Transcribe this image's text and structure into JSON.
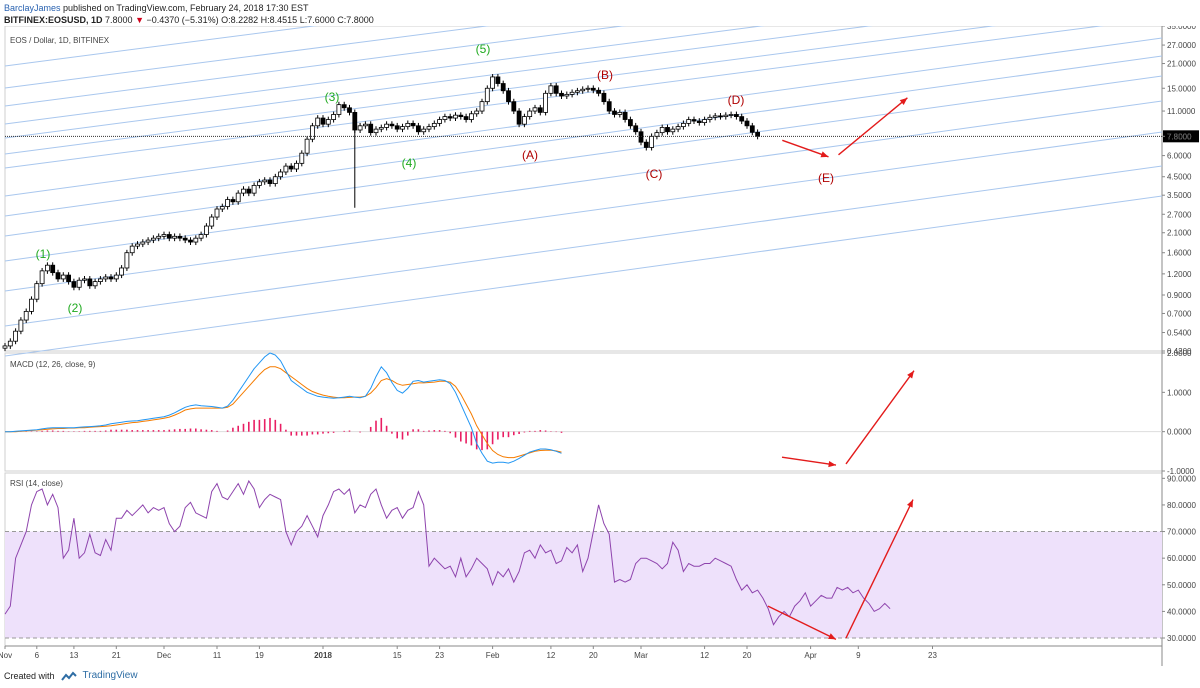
{
  "header": {
    "author": "BarclayJames",
    "published_text": "published on TradingView.com, February 24, 2018 17:30 EST",
    "symbol": "BITFINEX:EOSUSD, 1D",
    "last": "7.8000",
    "change": "−0.4370 (−5.31%)",
    "o_label": "O:",
    "o": "8.2282",
    "h_label": "H:",
    "h": "8.4515",
    "l_label": "L:",
    "l": "7.6000",
    "c_label": "C:",
    "c": "7.8000"
  },
  "footer": {
    "created_with": "Created with",
    "brand": "TradingView"
  },
  "colors": {
    "bull": "#ffffff",
    "bear": "#000000",
    "channel": "#a9c7ee",
    "macd": "#2196f3",
    "signal": "#f57c00",
    "hist": "#e91e63",
    "rsi": "#8e44ad",
    "rsi_band": "#eee1fb",
    "wave_green": "#1faa1f",
    "wave_red": "#b00000",
    "arrow": "#e31b1b"
  },
  "chart_data": [
    {
      "type": "candlestick",
      "title": "EOS / Dollar, 1D, BITFINEX",
      "scale": "log",
      "ylim": [
        0.42,
        35
      ],
      "y_ticks": [
        "35.0000",
        "27.0000",
        "21.0000",
        "15.0000",
        "11.0000",
        "7.8000",
        "6.0000",
        "4.5000",
        "3.5000",
        "2.7000",
        "2.1000",
        "1.6000",
        "1.2000",
        "0.9000",
        "0.7000",
        "0.5400",
        "0.4200"
      ],
      "y_tick_values": [
        35,
        27,
        21,
        15,
        11,
        7.8,
        6,
        4.5,
        3.5,
        2.7,
        2.1,
        1.6,
        1.2,
        0.9,
        0.7,
        0.54,
        0.42
      ],
      "last_price": "7.8000",
      "x_tick_labels": [
        "Nov",
        "6",
        "13",
        "21",
        "Dec",
        "11",
        "19",
        "2018",
        "15",
        "23",
        "Feb",
        "12",
        "20",
        "Mar",
        "12",
        "20",
        "Apr",
        "9",
        "23"
      ],
      "x_tick_days": [
        0,
        6,
        13,
        21,
        30,
        40,
        48,
        60,
        74,
        82,
        92,
        103,
        111,
        120,
        132,
        140,
        152,
        161,
        175
      ],
      "closes": [
        0.45,
        0.48,
        0.55,
        0.64,
        0.72,
        0.85,
        1.05,
        1.25,
        1.35,
        1.22,
        1.12,
        1.18,
        1.08,
        1.0,
        1.1,
        1.12,
        1.02,
        1.08,
        1.12,
        1.15,
        1.12,
        1.18,
        1.3,
        1.6,
        1.75,
        1.8,
        1.85,
        1.9,
        1.95,
        2.0,
        2.05,
        1.95,
        2.0,
        1.95,
        1.9,
        1.85,
        1.95,
        2.05,
        2.3,
        2.6,
        2.9,
        3.0,
        3.3,
        3.2,
        3.6,
        3.8,
        3.6,
        4.0,
        4.2,
        4.3,
        4.1,
        4.5,
        4.8,
        5.2,
        5.0,
        5.4,
        6.2,
        7.5,
        9.0,
        10.0,
        9.2,
        9.8,
        10.5,
        12.0,
        11.5,
        10.8,
        8.5,
        9.0,
        9.2,
        8.2,
        8.6,
        8.8,
        9.2,
        9.0,
        8.6,
        8.9,
        9.3,
        9.0,
        8.3,
        8.6,
        8.9,
        9.3,
        9.8,
        10.2,
        10.0,
        10.4,
        10.2,
        9.8,
        10.6,
        11.0,
        12.5,
        15.0,
        17.5,
        16.0,
        14.5,
        12.5,
        11.0,
        9.2,
        10.2,
        11.0,
        11.5,
        10.8,
        14.0,
        15.5,
        14.0,
        13.5,
        13.8,
        14.2,
        14.5,
        14.8,
        15.0,
        14.6,
        14.0,
        12.5,
        11.0,
        10.5,
        10.8,
        9.8,
        9.0,
        8.3,
        7.2,
        6.7,
        7.8,
        8.2,
        8.8,
        8.3,
        8.6,
        8.9,
        9.3,
        9.8,
        9.6,
        9.4,
        9.8,
        10.1,
        10.3,
        10.2,
        10.4,
        10.5,
        10.2,
        9.6,
        9.0,
        8.237,
        7.8
      ],
      "wave_labels": [
        {
          "text": "(1)",
          "color": "green"
        },
        {
          "text": "(2)",
          "color": "green"
        },
        {
          "text": "(3)",
          "color": "green"
        },
        {
          "text": "(4)",
          "color": "green"
        },
        {
          "text": "(5)",
          "color": "green"
        },
        {
          "text": "(A)",
          "color": "red"
        },
        {
          "text": "(B)",
          "color": "red"
        },
        {
          "text": "(C)",
          "color": "red"
        },
        {
          "text": "(D)",
          "color": "red"
        },
        {
          "text": "(E)",
          "color": "red"
        }
      ],
      "projection": [
        {
          "day": 141,
          "price": 7.8
        },
        {
          "day": 155,
          "price": 5.9
        },
        {
          "day": 168,
          "price": 15.5
        }
      ]
    },
    {
      "type": "line",
      "title": "MACD (12, 26, close, 9)",
      "ylim": [
        -1.0,
        2.0
      ],
      "y_ticks": [
        "2.0000",
        "1.0000",
        "0.0000",
        "-1.0000"
      ],
      "y_tick_values": [
        2,
        1,
        0,
        -1
      ],
      "series": [
        {
          "name": "MACD",
          "values": [
            0,
            0,
            0.01,
            0.02,
            0.03,
            0.04,
            0.05,
            0.07,
            0.09,
            0.1,
            0.1,
            0.1,
            0.1,
            0.1,
            0.11,
            0.12,
            0.13,
            0.14,
            0.15,
            0.17,
            0.2,
            0.22,
            0.24,
            0.26,
            0.27,
            0.28,
            0.3,
            0.32,
            0.34,
            0.36,
            0.38,
            0.42,
            0.48,
            0.55,
            0.62,
            0.66,
            0.68,
            0.66,
            0.65,
            0.64,
            0.62,
            0.6,
            0.65,
            0.8,
            1.0,
            1.2,
            1.4,
            1.6,
            1.75,
            1.9,
            2.0,
            1.95,
            1.8,
            1.55,
            1.3,
            1.2,
            1.1,
            1.0,
            0.95,
            0.9,
            0.88,
            0.86,
            0.85,
            0.86,
            0.88,
            0.9,
            0.88,
            0.86,
            0.9,
            1.1,
            1.4,
            1.65,
            1.5,
            1.25,
            1.05,
            0.98,
            1.1,
            1.28,
            1.3,
            1.26,
            1.28,
            1.3,
            1.32,
            1.3,
            1.22,
            1.0,
            0.7,
            0.4,
            0.1,
            -0.3,
            -0.55,
            -0.75,
            -0.8,
            -0.78,
            -0.78,
            -0.8,
            -0.75,
            -0.68,
            -0.6,
            -0.52,
            -0.48,
            -0.44,
            -0.44,
            -0.46,
            -0.5,
            -0.55
          ]
        },
        {
          "name": "Signal",
          "values": [
            0,
            0,
            0,
            0.01,
            0.02,
            0.03,
            0.04,
            0.05,
            0.06,
            0.07,
            0.08,
            0.08,
            0.09,
            0.09,
            0.1,
            0.1,
            0.11,
            0.12,
            0.13,
            0.14,
            0.15,
            0.17,
            0.19,
            0.21,
            0.23,
            0.24,
            0.26,
            0.28,
            0.3,
            0.32,
            0.34,
            0.37,
            0.42,
            0.48,
            0.55,
            0.58,
            0.6,
            0.6,
            0.6,
            0.6,
            0.6,
            0.6,
            0.62,
            0.7,
            0.85,
            1.0,
            1.15,
            1.3,
            1.45,
            1.58,
            1.65,
            1.65,
            1.6,
            1.5,
            1.4,
            1.3,
            1.2,
            1.1,
            1.02,
            0.97,
            0.93,
            0.9,
            0.88,
            0.86,
            0.86,
            0.87,
            0.88,
            0.88,
            0.9,
            0.98,
            1.12,
            1.3,
            1.35,
            1.3,
            1.22,
            1.18,
            1.2,
            1.22,
            1.24,
            1.24,
            1.25,
            1.26,
            1.28,
            1.28,
            1.26,
            1.15,
            0.95,
            0.7,
            0.45,
            0.15,
            -0.08,
            -0.3,
            -0.48,
            -0.58,
            -0.64,
            -0.66,
            -0.66,
            -0.62,
            -0.58,
            -0.54,
            -0.5,
            -0.48,
            -0.47,
            -0.47,
            -0.49,
            -0.52
          ]
        }
      ],
      "histogram": [
        0,
        0,
        0.01,
        0.01,
        0.01,
        0.01,
        0.01,
        0.02,
        0.03,
        0.03,
        0.02,
        0.02,
        0.01,
        0.01,
        0.01,
        0.02,
        0.02,
        0.02,
        0.02,
        0.03,
        0.05,
        0.05,
        0.05,
        0.05,
        0.04,
        0.04,
        0.04,
        0.04,
        0.04,
        0.04,
        0.04,
        0.05,
        0.06,
        0.07,
        0.07,
        0.08,
        0.08,
        0.06,
        0.05,
        0.04,
        0.02,
        0,
        0.03,
        0.1,
        0.15,
        0.2,
        0.25,
        0.3,
        0.3,
        0.32,
        0.35,
        0.3,
        0.2,
        0.05,
        -0.1,
        -0.1,
        -0.1,
        -0.1,
        -0.07,
        -0.07,
        -0.05,
        -0.04,
        -0.03,
        0,
        0.02,
        0.03,
        0,
        -0.02,
        0,
        0.12,
        0.28,
        0.35,
        0.15,
        -0.05,
        -0.17,
        -0.2,
        -0.1,
        0.06,
        0.06,
        0.02,
        0.03,
        0.04,
        0.04,
        0.02,
        -0.04,
        -0.15,
        -0.25,
        -0.3,
        -0.35,
        -0.45,
        -0.47,
        -0.45,
        -0.32,
        -0.2,
        -0.14,
        -0.14,
        -0.09,
        -0.06,
        -0.02,
        0.02,
        0.02,
        0.04,
        0.03,
        0.01,
        -0.01,
        -0.03
      ]
    },
    {
      "type": "line",
      "title": "RSI (14, close)",
      "ylim": [
        27,
        92
      ],
      "y_ticks": [
        "90.0000",
        "80.0000",
        "70.0000",
        "60.0000",
        "50.0000",
        "40.0000",
        "30.0000"
      ],
      "y_tick_values": [
        90,
        80,
        70,
        60,
        50,
        40,
        30
      ],
      "bands": [
        70,
        30
      ],
      "series": [
        {
          "name": "RSI",
          "values": [
            39,
            42,
            60,
            65,
            70,
            80,
            85,
            86,
            80,
            84,
            79,
            60,
            63,
            75,
            60,
            62,
            69,
            62,
            61,
            67,
            63,
            75,
            75,
            78,
            76,
            78,
            80,
            77,
            79,
            78,
            79,
            73,
            70,
            72,
            79,
            81,
            77,
            76,
            75,
            85,
            88,
            83,
            82,
            85,
            88,
            84,
            89,
            86,
            79,
            82,
            84,
            83,
            82,
            70,
            65,
            70,
            72,
            76,
            72,
            68,
            76,
            80,
            85,
            86,
            84,
            86,
            77,
            80,
            79,
            84,
            86,
            80,
            75,
            78,
            79,
            75,
            78,
            79,
            85,
            80,
            57,
            60,
            58,
            56,
            57,
            53,
            60,
            53,
            56,
            60,
            58,
            56,
            50,
            55,
            53,
            56,
            51,
            55,
            62,
            63,
            60,
            65,
            62,
            63,
            58,
            59,
            64,
            62,
            65,
            55,
            60,
            70,
            80,
            73,
            69,
            51,
            52,
            51,
            52,
            58,
            60,
            60,
            59,
            58,
            56,
            58,
            66,
            63,
            55,
            58,
            57,
            57,
            58,
            58,
            60,
            59,
            58,
            57,
            52,
            48,
            50,
            47,
            48,
            45,
            41,
            35,
            38,
            40,
            38,
            42,
            44,
            47,
            42,
            44,
            46,
            45,
            45,
            49,
            48,
            49,
            47,
            48,
            45,
            43,
            40,
            41,
            43,
            41
          ]
        }
      ]
    }
  ],
  "pane_titles": {
    "price": "EOS / Dollar, 1D, BITFINEX",
    "macd": "MACD (12, 26, close, 9)",
    "rsi": "RSI (14, close)"
  }
}
